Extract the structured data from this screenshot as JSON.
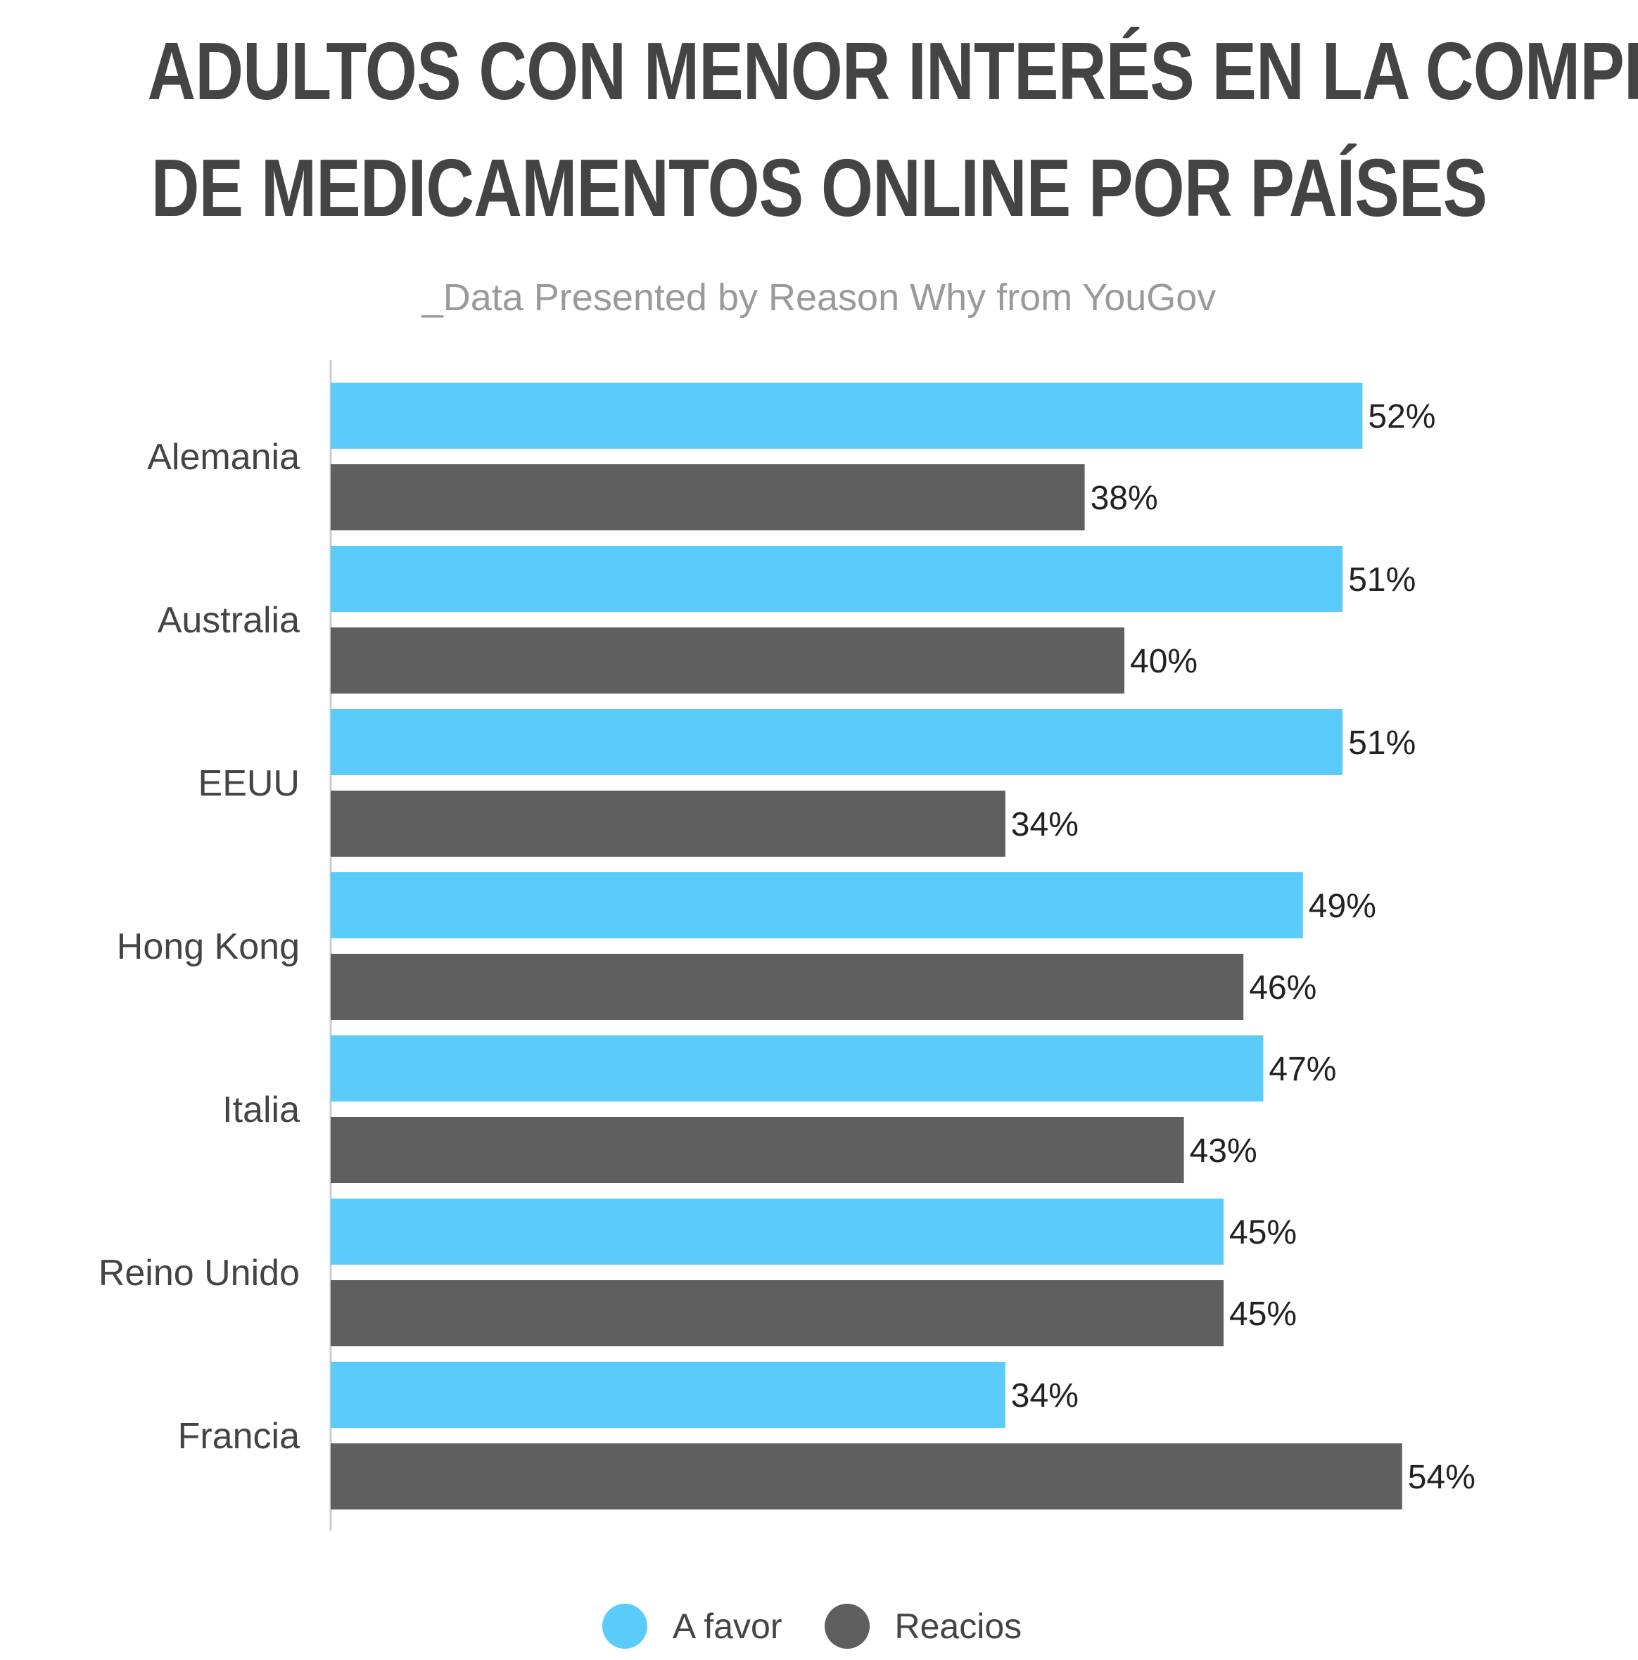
{
  "title": {
    "line1": "ADULTOS CON MENOR INTERÉS EN LA COMPRA",
    "line2": "DE MEDICAMENTOS ONLINE POR PAÍSES"
  },
  "subtitle": "_Data Presented by Reason Why from YouGov",
  "colors": {
    "a_favor": "#5bcbfa",
    "reacios": "#5f5f5f",
    "text": "#444444",
    "axis": "#cccccc"
  },
  "legend": {
    "a_favor": "A favor",
    "reacios": "Reacios"
  },
  "chart_data": {
    "type": "bar",
    "orientation": "horizontal",
    "categories": [
      "Alemania",
      "Australia",
      "EEUU",
      "Hong Kong",
      "Italia",
      "Reino Unido",
      "Francia"
    ],
    "series": [
      {
        "name": "A favor",
        "values": [
          52,
          51,
          51,
          49,
          47,
          45,
          34
        ]
      },
      {
        "name": "Reacios",
        "values": [
          38,
          40,
          34,
          46,
          43,
          45,
          54
        ]
      }
    ],
    "value_suffix": "%",
    "xlim": [
      0,
      60
    ],
    "grid": false,
    "legend_position": "bottom"
  }
}
